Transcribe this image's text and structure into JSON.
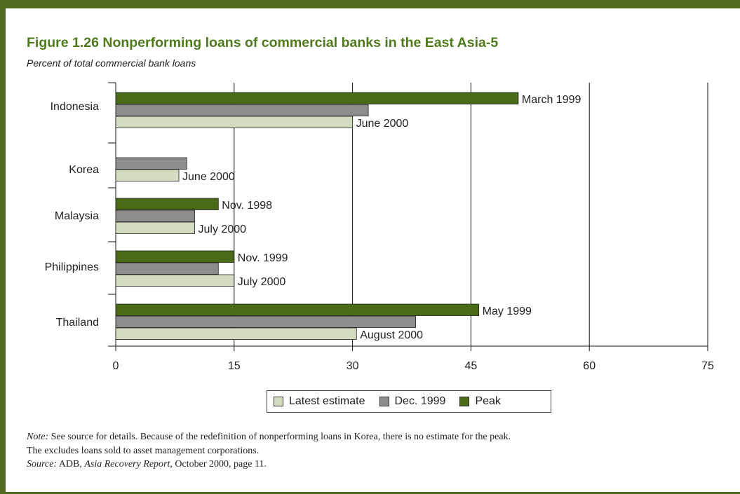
{
  "title": "Figure 1.26  Nonperforming loans of commercial banks in the East Asia-5",
  "subtitle": "Percent of total commercial bank loans",
  "colors": {
    "frame": "#4e6a1c",
    "title": "#4e7a1c",
    "latest": "#d3dcc0",
    "dec1999": "#8d8d8d",
    "peak": "#4a6a18"
  },
  "legend": {
    "latest": "Latest estimate",
    "dec1999": "Dec. 1999",
    "peak": "Peak"
  },
  "chart_data": {
    "type": "bar",
    "orientation": "horizontal",
    "title": "Figure 1.26  Nonperforming loans of commercial banks in the East Asia-5",
    "subtitle": "Percent of total commercial bank loans",
    "categories": [
      "Indonesia",
      "Korea",
      "Malaysia",
      "Philippines",
      "Thailand"
    ],
    "series": [
      {
        "name": "Peak",
        "values": [
          51,
          null,
          13,
          15,
          46
        ]
      },
      {
        "name": "Dec. 1999",
        "values": [
          32,
          9,
          10,
          13,
          38
        ]
      },
      {
        "name": "Latest estimate",
        "values": [
          30,
          8,
          10,
          15,
          30.5
        ]
      }
    ],
    "annotations": [
      {
        "category": "Indonesia",
        "series": "Peak",
        "text": "March 1999"
      },
      {
        "category": "Indonesia",
        "series": "Latest estimate",
        "text": "June 2000"
      },
      {
        "category": "Korea",
        "series": "Latest estimate",
        "text": "June 2000"
      },
      {
        "category": "Malaysia",
        "series": "Peak",
        "text": "Nov. 1998"
      },
      {
        "category": "Malaysia",
        "series": "Latest estimate",
        "text": "July 2000"
      },
      {
        "category": "Philippines",
        "series": "Peak",
        "text": "Nov. 1999"
      },
      {
        "category": "Philippines",
        "series": "Latest estimate",
        "text": "July 2000"
      },
      {
        "category": "Thailand",
        "series": "Peak",
        "text": "May 1999"
      },
      {
        "category": "Thailand",
        "series": "Latest estimate",
        "text": "August 2000"
      }
    ],
    "xlim": [
      0,
      75
    ],
    "xticks": [
      0,
      15,
      30,
      45,
      60,
      75
    ],
    "grid": true,
    "legend_position": "bottom-center"
  },
  "note": {
    "label": "Note:",
    "text1": " See source for details. Because of the redefinition of nonperforming loans in Korea, there is no estimate for the peak.",
    "text2": "The excludes loans sold to asset management corporations.",
    "source_label": "Source:",
    "source_pre": " ADB, ",
    "source_title": "Asia Recovery Report",
    "source_post": ", October 2000, page 11."
  }
}
